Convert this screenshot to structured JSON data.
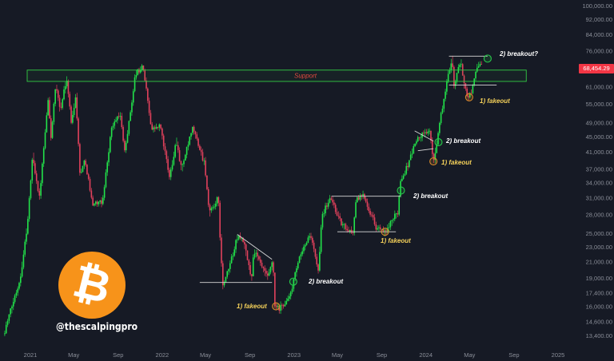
{
  "chart_data": {
    "type": "candlestick",
    "title": "",
    "xlabel": "",
    "ylabel": "",
    "y_scale": "log",
    "ylim": [
      12800,
      102000
    ],
    "x_tick_labels": [
      "2021",
      "May",
      "Sep",
      "2022",
      "May",
      "Sep",
      "2023",
      "May",
      "Sep",
      "2024",
      "May",
      "Sep",
      "2025"
    ],
    "x_tick_dates": [
      "2021-01-01",
      "2021-05-01",
      "2021-09-01",
      "2022-01-01",
      "2022-05-01",
      "2022-09-01",
      "2023-01-01",
      "2023-05-01",
      "2023-09-01",
      "2024-01-01",
      "2024-05-01",
      "2024-09-01",
      "2025-01-01"
    ],
    "y_tick_labels": [
      "100,000.00",
      "92,000.00",
      "84,000.00",
      "76,000.00",
      "68,454.29",
      "61,000.00",
      "55,000.00",
      "49,000.00",
      "45,000.00",
      "41,000.00",
      "37,000.00",
      "34,000.00",
      "31,000.00",
      "28,000.00",
      "25,000.00",
      "23,000.00",
      "21,000.00",
      "19,000.00",
      "17,400.00",
      "16,000.00",
      "14,600.00",
      "13,400.00"
    ],
    "y_tick_values": [
      100000,
      92000,
      84000,
      76000,
      68454.29,
      61000,
      55000,
      49000,
      45000,
      41000,
      37000,
      34000,
      31000,
      28000,
      25000,
      23000,
      21000,
      19000,
      17400,
      16000,
      14600,
      13400
    ],
    "last_price": "68,454.29",
    "price_path": [
      [
        "2020-10-20",
        13500
      ],
      [
        "2020-12-05",
        19000
      ],
      [
        "2020-12-25",
        26500
      ],
      [
        "2021-01-08",
        40000
      ],
      [
        "2021-01-27",
        31000
      ],
      [
        "2021-02-20",
        56000
      ],
      [
        "2021-02-28",
        45000
      ],
      [
        "2021-03-13",
        61000
      ],
      [
        "2021-03-25",
        53000
      ],
      [
        "2021-04-13",
        64000
      ],
      [
        "2021-04-25",
        49000
      ],
      [
        "2021-05-08",
        58000
      ],
      [
        "2021-05-19",
        36000
      ],
      [
        "2021-06-03",
        39000
      ],
      [
        "2021-06-22",
        30000
      ],
      [
        "2021-07-20",
        30000
      ],
      [
        "2021-08-14",
        47000
      ],
      [
        "2021-09-06",
        52000
      ],
      [
        "2021-09-21",
        41000
      ],
      [
        "2021-10-20",
        66000
      ],
      [
        "2021-11-10",
        69000
      ],
      [
        "2021-12-04",
        47000
      ],
      [
        "2021-12-28",
        48000
      ],
      [
        "2022-01-22",
        35000
      ],
      [
        "2022-02-10",
        44000
      ],
      [
        "2022-02-24",
        37000
      ],
      [
        "2022-03-28",
        47500
      ],
      [
        "2022-04-30",
        38000
      ],
      [
        "2022-05-12",
        28000
      ],
      [
        "2022-06-06",
        31000
      ],
      [
        "2022-06-18",
        18000
      ],
      [
        "2022-07-01",
        19500
      ],
      [
        "2022-07-30",
        24500
      ],
      [
        "2022-08-14",
        24000
      ],
      [
        "2022-09-06",
        19000
      ],
      [
        "2022-09-13",
        22500
      ],
      [
        "2022-10-20",
        19000
      ],
      [
        "2022-11-05",
        21000
      ],
      [
        "2022-11-09",
        16000
      ],
      [
        "2022-11-21",
        15700
      ],
      [
        "2022-12-20",
        16800
      ],
      [
        "2023-01-14",
        21000
      ],
      [
        "2023-02-16",
        25000
      ],
      [
        "2023-03-10",
        19600
      ],
      [
        "2023-03-20",
        28000
      ],
      [
        "2023-04-14",
        31000
      ],
      [
        "2023-05-12",
        26500
      ],
      [
        "2023-06-14",
        25000
      ],
      [
        "2023-06-22",
        30500
      ],
      [
        "2023-07-14",
        31500
      ],
      [
        "2023-08-17",
        26000
      ],
      [
        "2023-09-11",
        25000
      ],
      [
        "2023-10-16",
        28500
      ],
      [
        "2023-10-24",
        34500
      ],
      [
        "2023-11-10",
        37300
      ],
      [
        "2023-12-06",
        44000
      ],
      [
        "2024-01-11",
        47000
      ],
      [
        "2024-01-23",
        38500
      ],
      [
        "2024-02-14",
        52000
      ],
      [
        "2024-03-05",
        66000
      ],
      [
        "2024-03-14",
        73000
      ],
      [
        "2024-03-20",
        61500
      ],
      [
        "2024-04-08",
        72000
      ],
      [
        "2024-04-18",
        60500
      ],
      [
        "2024-05-01",
        57000
      ],
      [
        "2024-05-14",
        62500
      ],
      [
        "2024-05-22",
        69500
      ],
      [
        "2024-06-04",
        70000
      ],
      [
        "2024-06-07",
        68454.29
      ]
    ],
    "annotations": {
      "support_label": "Support",
      "fakeout_1": "1) fakeout",
      "breakout_2": "2) breakout",
      "fakeout_2": "1) fakeout",
      "breakout_3": "2) breakout",
      "fakeout_3": "1) fakeout",
      "breakout_4": "2) breakout",
      "fakeout_4": "1) fakeout",
      "breakout_5": "2) breakout?"
    },
    "support_zone": {
      "from": "2021-01-01",
      "to": "2024-10-05",
      "low": 63000,
      "high": 67500
    },
    "markers": [
      {
        "date": "2022-11-12",
        "price": 16000,
        "kind": "fakeout"
      },
      {
        "date": "2022-12-30",
        "price": 18600,
        "kind": "breakout"
      },
      {
        "date": "2023-09-10",
        "price": 25200,
        "kind": "fakeout"
      },
      {
        "date": "2023-10-24",
        "price": 32400,
        "kind": "breakout"
      },
      {
        "date": "2024-01-22",
        "price": 38700,
        "kind": "fakeout"
      },
      {
        "date": "2024-02-05",
        "price": 43500,
        "kind": "breakout"
      },
      {
        "date": "2024-04-30",
        "price": 57200,
        "kind": "fakeout"
      },
      {
        "date": "2024-06-20",
        "price": 72400,
        "kind": "breakout"
      }
    ],
    "trendlines": [
      {
        "from": [
          "2022-04-15",
          18500
        ],
        "to": [
          "2022-11-01",
          18500
        ]
      },
      {
        "from": [
          "2022-07-28",
          24800
        ],
        "to": [
          "2022-11-01",
          21300
        ]
      },
      {
        "from": [
          "2023-04-15",
          31300
        ],
        "to": [
          "2023-10-24",
          31300
        ]
      },
      {
        "from": [
          "2023-05-01",
          25200
        ],
        "to": [
          "2023-10-10",
          25200
        ]
      },
      {
        "from": [
          "2023-12-01",
          46600
        ],
        "to": [
          "2024-01-22",
          43800
        ]
      },
      {
        "from": [
          "2023-12-10",
          41300
        ],
        "to": [
          "2024-01-22",
          41800
        ]
      },
      {
        "from": [
          "2024-03-05",
          73500
        ],
        "to": [
          "2024-06-20",
          73500
        ]
      },
      {
        "from": [
          "2024-03-05",
          61600
        ],
        "to": [
          "2024-07-15",
          61600
        ]
      }
    ],
    "colors": {
      "up": "#22e34a",
      "down": "#e2415c",
      "support": "#33cc44",
      "support_text": "#e0483f",
      "annotation_white": "#ffffff",
      "annotation_yellow": "#f6d25a",
      "marker_green": "#27c94a",
      "marker_orange": "#d88a2a"
    },
    "grid": false,
    "legend": "none"
  },
  "branding": {
    "handle": "@thescalpingpro",
    "logo_icon": "bitcoin-logo-icon",
    "logo_color": "#f7931a"
  }
}
